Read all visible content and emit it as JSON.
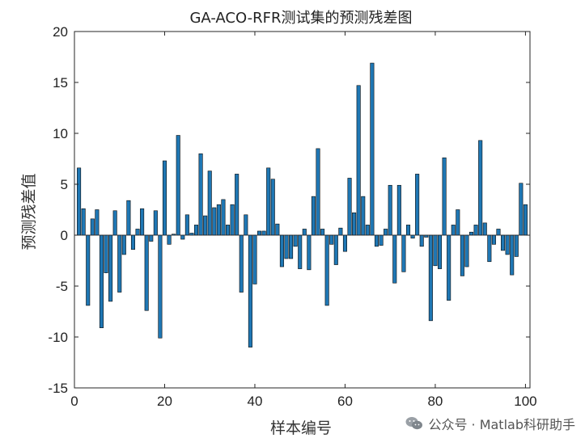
{
  "chart_data": {
    "type": "bar",
    "title": "GA-ACO-RFR测试集的预测残差图",
    "xlabel": "样本编号",
    "ylabel": "预测残差值",
    "xlim": [
      0,
      101
    ],
    "ylim": [
      -15,
      20
    ],
    "xticks": [
      "0",
      "20",
      "40",
      "60",
      "80",
      "100"
    ],
    "yticks": [
      "-15",
      "-10",
      "-5",
      "0",
      "5",
      "10",
      "15",
      "20"
    ],
    "bar_color": "#1f77b4",
    "x": [
      1,
      2,
      3,
      4,
      5,
      6,
      7,
      8,
      9,
      10,
      11,
      12,
      13,
      14,
      15,
      16,
      17,
      18,
      19,
      20,
      21,
      22,
      23,
      24,
      25,
      26,
      27,
      28,
      29,
      30,
      31,
      32,
      33,
      34,
      35,
      36,
      37,
      38,
      39,
      40,
      41,
      42,
      43,
      44,
      45,
      46,
      47,
      48,
      49,
      50,
      51,
      52,
      53,
      54,
      55,
      56,
      57,
      58,
      59,
      60,
      61,
      62,
      63,
      64,
      65,
      66,
      67,
      68,
      69,
      70,
      71,
      72,
      73,
      74,
      75,
      76,
      77,
      78,
      79,
      80,
      81,
      82,
      83,
      84,
      85,
      86,
      87,
      88,
      89,
      90,
      91,
      92,
      93,
      94,
      95,
      96,
      97,
      98,
      99,
      100
    ],
    "values": [
      6.6,
      2.6,
      -6.9,
      1.6,
      2.5,
      -9.1,
      -3.7,
      -6.5,
      2.4,
      -5.6,
      -1.9,
      3.4,
      -1.4,
      0.6,
      2.6,
      -7.4,
      -0.6,
      2.4,
      -10.1,
      7.3,
      -0.9,
      0.1,
      9.8,
      -0.4,
      2.0,
      0.2,
      1.0,
      8.0,
      1.9,
      6.3,
      2.7,
      3.0,
      3.5,
      1.0,
      3.0,
      6.0,
      -5.6,
      2.0,
      -11.0,
      -4.8,
      0.4,
      0.4,
      6.6,
      5.5,
      1.1,
      -3.1,
      -2.3,
      -2.3,
      -1.1,
      -3.3,
      0.6,
      -3.4,
      3.8,
      8.5,
      0.6,
      -6.9,
      -0.9,
      -2.9,
      0.7,
      -1.6,
      5.6,
      2.2,
      14.7,
      3.8,
      1.0,
      16.9,
      -1.1,
      -1.0,
      0.6,
      4.9,
      -4.7,
      4.9,
      -3.6,
      1.0,
      -0.3,
      6.0,
      -1.1,
      -0.2,
      -8.4,
      -3.0,
      -3.3,
      7.6,
      -6.4,
      1.0,
      2.5,
      -4.0,
      -3.1,
      0.3,
      1.0,
      9.3,
      1.2,
      -2.6,
      -0.9,
      0.6,
      -1.5,
      -1.9,
      -3.9,
      -2.1,
      5.1,
      3.0
    ]
  },
  "watermark": {
    "icon": "wechat-icon",
    "text": "公众号 · Matlab科研助手"
  }
}
